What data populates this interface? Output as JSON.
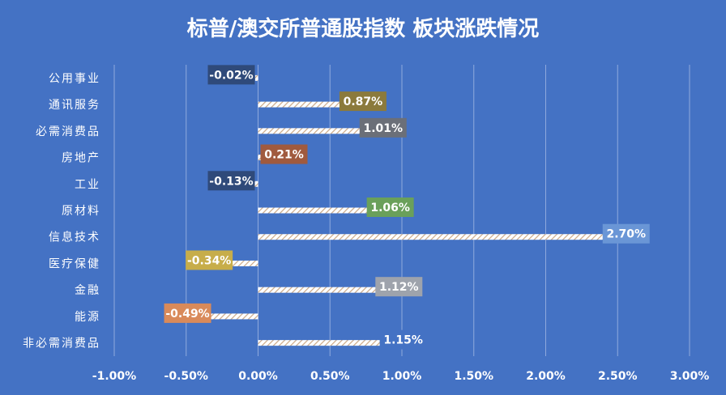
{
  "chart_data": {
    "type": "bar",
    "orientation": "horizontal",
    "title": "标普/澳交所普通股指数 板块涨跌情况",
    "categories": [
      "公用事业",
      "通讯服务",
      "必需消费品",
      "房地产",
      "工业",
      "原材料",
      "信息技术",
      "医疗保健",
      "金融",
      "能源",
      "非必需消费品"
    ],
    "values": [
      -0.02,
      0.87,
      1.01,
      0.21,
      -0.13,
      1.06,
      2.7,
      -0.34,
      1.12,
      -0.49,
      1.15
    ],
    "value_labels": [
      "-0.02%",
      "0.87%",
      "1.01%",
      "0.21%",
      "-0.13%",
      "1.06%",
      "2.70%",
      "-0.34%",
      "1.12%",
      "-0.49%",
      "1.15%"
    ],
    "label_colors": [
      "#2f4a7a",
      "#8b7a3c",
      "#6b6f78",
      "#a05a3e",
      "#2f4a7a",
      "#6aa05a",
      "#6a96d6",
      "#c7ad4a",
      "#9ea3ac",
      "#d98a5a",
      "#4472c4"
    ],
    "xlim": [
      -1.0,
      3.0
    ],
    "xticks": [
      -1.0,
      -0.5,
      0.0,
      0.5,
      1.0,
      1.5,
      2.0,
      2.5,
      3.0
    ],
    "xtick_labels": [
      "-1.00%",
      "-0.50%",
      "0.00%",
      "0.50%",
      "1.00%",
      "1.50%",
      "2.00%",
      "2.50%",
      "3.00%"
    ],
    "grid": true,
    "bar_fill": "hatched white"
  }
}
